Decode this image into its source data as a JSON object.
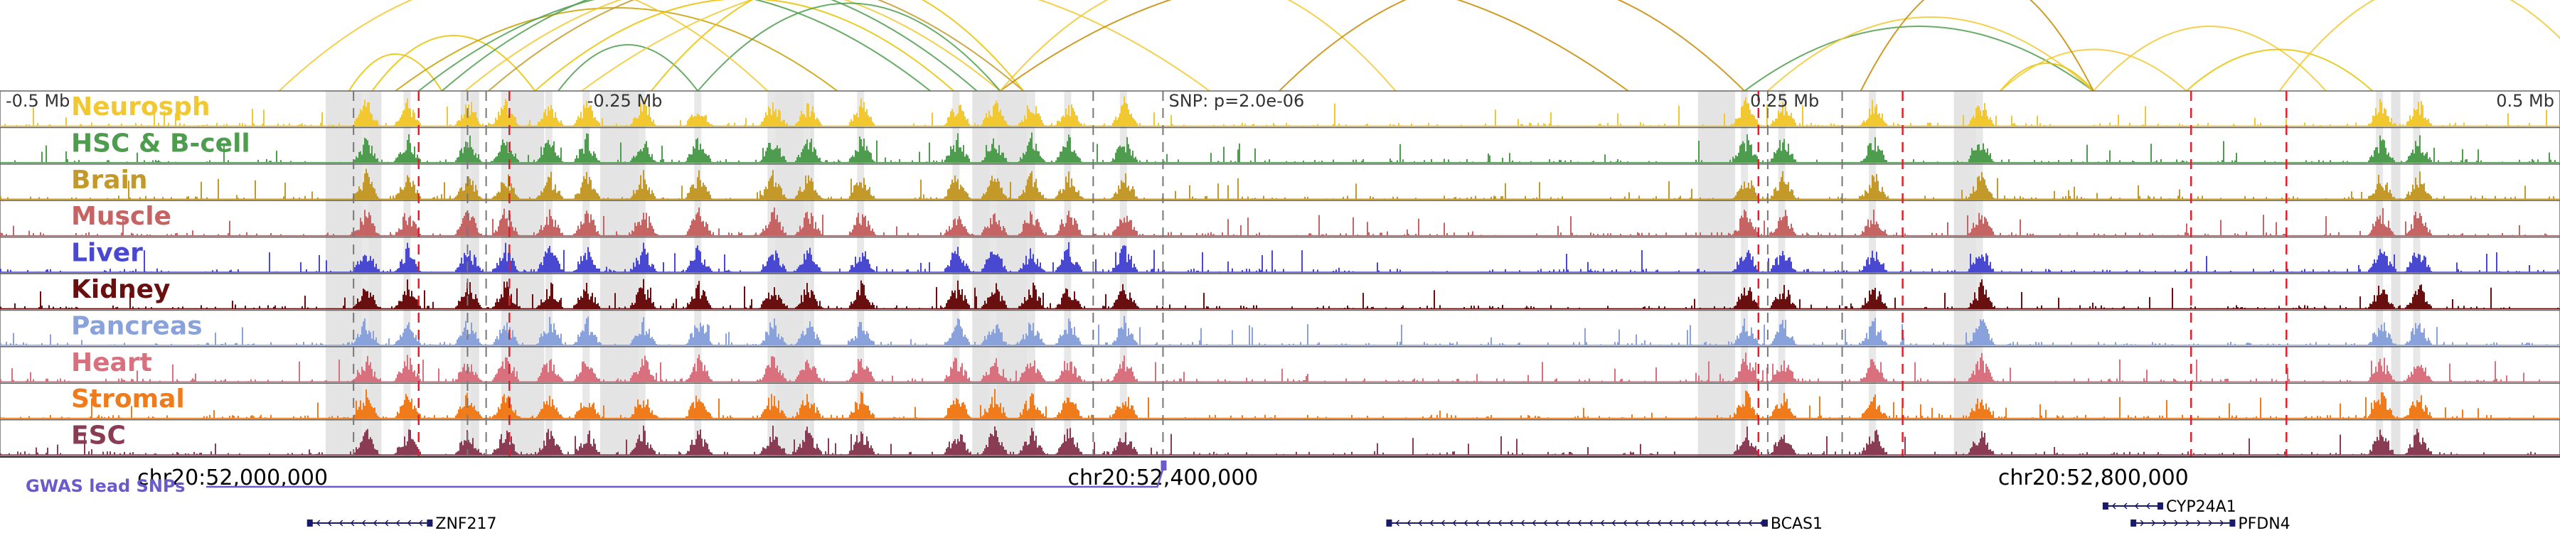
{
  "chart_data": {
    "type": "genome-browser",
    "chromosome": "chr20",
    "xlim": [
      51900000,
      53000000
    ],
    "center": 52400000,
    "relative_ticks": [
      {
        "label": "-0.5 Mb",
        "pos": 51900000
      },
      {
        "label": "-0.25 Mb",
        "pos": 52150000
      },
      {
        "label": "0.25 Mb",
        "pos": 52650000
      },
      {
        "label": "0.5 Mb",
        "pos": 52900000
      }
    ],
    "coordinate_labels": [
      {
        "label": "chr20:52,000,000",
        "pos": 52000000
      },
      {
        "label": "chr20:52,400,000",
        "pos": 52400000
      },
      {
        "label": "chr20:52,800,000",
        "pos": 52800000
      }
    ],
    "snp_label": "SNP: p=2.0e-06",
    "lead_snp_pos": 52400000,
    "gwas_label": "GWAS lead SNPs",
    "tracks": [
      {
        "name": "Neurosph",
        "color": "#f2c830",
        "seed": 11
      },
      {
        "name": "HSC & B-cell",
        "color": "#4e9d4e",
        "seed": 23
      },
      {
        "name": "Brain",
        "color": "#c39a2a",
        "seed": 37
      },
      {
        "name": "Muscle",
        "color": "#c66464",
        "seed": 41
      },
      {
        "name": "Liver",
        "color": "#4848d0",
        "seed": 53
      },
      {
        "name": "Kidney",
        "color": "#6a0f0f",
        "seed": 67
      },
      {
        "name": "Pancreas",
        "color": "#8aa2dc",
        "seed": 71
      },
      {
        "name": "Heart",
        "color": "#d8707e",
        "seed": 83
      },
      {
        "name": "Stromal",
        "color": "#f07b1a",
        "seed": 97
      },
      {
        "name": "ESC",
        "color": "#8a3c55",
        "seed": 101
      }
    ],
    "peak_regions": [
      52057000,
      52075000,
      52101000,
      52117000,
      52136000,
      52152000,
      52176000,
      52200000,
      52232000,
      52247000,
      52270000,
      52311000,
      52327000,
      52343000,
      52359000,
      52383000,
      52650000,
      52666000,
      52705000,
      52751000,
      52923000,
      52939000
    ],
    "highlight_regions": [
      [
        52040000,
        52064000
      ],
      [
        52098000,
        52106000
      ],
      [
        52117000,
        52134000
      ],
      [
        52158000,
        52175000
      ],
      [
        52230000,
        52250000
      ],
      [
        52318000,
        52345000
      ],
      [
        52630000,
        52646000
      ],
      [
        52740000,
        52750000
      ],
      [
        52928000,
        52932000
      ]
    ],
    "dashed_red": [
      52080000,
      52119000,
      52656000,
      52718000,
      52842000,
      52883000
    ],
    "dashed_gray": [
      52052000,
      52101000,
      52109000,
      52370000,
      52400000,
      52660000,
      52692000
    ],
    "arcs": [
      {
        "from": 52050000,
        "to": 52090000,
        "color": "#e8c200",
        "h": 40
      },
      {
        "from": 52060000,
        "to": 52130000,
        "color": "#e8c200",
        "h": 60
      },
      {
        "from": 52070000,
        "to": 52260000,
        "color": "#c8a000",
        "h": 90
      },
      {
        "from": 52080000,
        "to": 52300000,
        "color": "#4e9d4e",
        "h": 110
      },
      {
        "from": 52090000,
        "to": 52320000,
        "color": "#4e9d4e",
        "h": 130
      },
      {
        "from": 52100000,
        "to": 52330000,
        "color": "#f2c830",
        "h": 120
      },
      {
        "from": 52110000,
        "to": 52340000,
        "color": "#c39a2a",
        "h": 150
      },
      {
        "from": 52130000,
        "to": 52310000,
        "color": "#e8c200",
        "h": 100
      },
      {
        "from": 52140000,
        "to": 52200000,
        "color": "#4e9d4e",
        "h": 50
      },
      {
        "from": 52150000,
        "to": 52420000,
        "color": "#f2c830",
        "h": 190
      },
      {
        "from": 52180000,
        "to": 52340000,
        "color": "#e8c200",
        "h": 140
      },
      {
        "from": 52200000,
        "to": 52330000,
        "color": "#4e9d4e",
        "h": 95
      },
      {
        "from": 52330000,
        "to": 52600000,
        "color": "#c58a00",
        "h": 190
      },
      {
        "from": 52330000,
        "to": 52500000,
        "color": "#f2c830",
        "h": 170
      },
      {
        "from": 52450000,
        "to": 52650000,
        "color": "#c58a00",
        "h": 180
      },
      {
        "from": 52650000,
        "to": 52800000,
        "color": "#4e9d4e",
        "h": 70
      },
      {
        "from": 52660000,
        "to": 52800000,
        "color": "#f2c830",
        "h": 80
      },
      {
        "from": 52760000,
        "to": 52800000,
        "color": "#e8c200",
        "h": 30
      },
      {
        "from": 52760000,
        "to": 52840000,
        "color": "#f2c830",
        "h": 45
      },
      {
        "from": 52800000,
        "to": 52900000,
        "color": "#f2c830",
        "h": 70
      },
      {
        "from": 52840000,
        "to": 52920000,
        "color": "#e8c200",
        "h": 45
      },
      {
        "from": 52880000,
        "to": 53020000,
        "color": "#f2c830",
        "h": 120
      },
      {
        "from": 52700000,
        "to": 52800000,
        "color": "#c58a00",
        "h": 140
      },
      {
        "from": 52020000,
        "to": 52230000,
        "color": "#f2c830",
        "h": 140
      }
    ],
    "genes": [
      {
        "name": "ZNF217",
        "start": 52032000,
        "end": 52086000,
        "strand": "-",
        "row": 0
      },
      {
        "name": "BCAS1",
        "start": 52496000,
        "end": 52660000,
        "strand": "-",
        "row": 0
      },
      {
        "name": "CYP24A1",
        "start": 52804000,
        "end": 52830000,
        "strand": "-",
        "row": -1
      },
      {
        "name": "PFDN4",
        "start": 52816000,
        "end": 52861000,
        "strand": "+",
        "row": 0
      }
    ]
  }
}
